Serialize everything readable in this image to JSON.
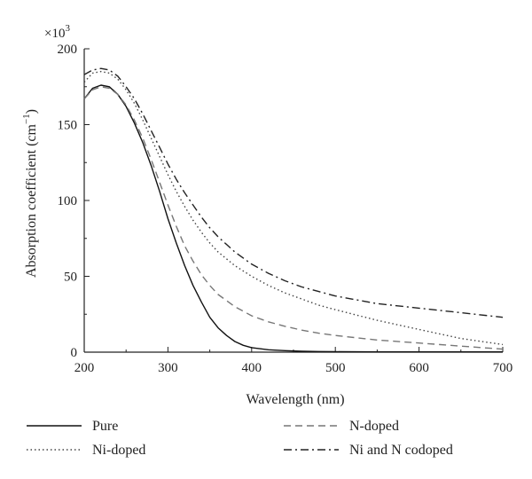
{
  "chart_data": {
    "type": "line",
    "xlabel": "Wavelength (nm)",
    "ylabel_main": "Absorption coefficient (cm",
    "ylabel_sup": "−1",
    "ylabel_tail": ")",
    "multiplier_prefix": "×10",
    "multiplier_exp": "3",
    "xlim": [
      200,
      700
    ],
    "ylim": [
      0,
      200
    ],
    "xticks": [
      200,
      300,
      400,
      500,
      600,
      700
    ],
    "yticks": [
      0,
      50,
      100,
      150,
      200
    ],
    "grid": false,
    "legend_placement": "bottom",
    "series": [
      {
        "name": "Pure",
        "color": "#111111",
        "dash": "solid",
        "x": [
          200,
          210,
          220,
          230,
          240,
          250,
          260,
          270,
          280,
          290,
          300,
          310,
          320,
          330,
          340,
          350,
          360,
          370,
          380,
          390,
          400,
          420,
          440,
          460,
          480,
          500,
          550,
          600,
          650,
          700
        ],
        "y": [
          167,
          174,
          176,
          175,
          170,
          162,
          151,
          138,
          123,
          106,
          88,
          72,
          57,
          44,
          33,
          23,
          16,
          11,
          7,
          4.5,
          3,
          1.6,
          1,
          0.6,
          0.4,
          0.3,
          0.2,
          0.2,
          0.2,
          0.2
        ]
      },
      {
        "name": "N-doped",
        "color": "#777777",
        "dash": "dashed",
        "x": [
          200,
          210,
          220,
          230,
          240,
          250,
          260,
          270,
          280,
          290,
          300,
          310,
          320,
          330,
          340,
          350,
          360,
          380,
          400,
          420,
          440,
          460,
          480,
          500,
          550,
          600,
          650,
          700
        ],
        "y": [
          167,
          173,
          175,
          174,
          170,
          163,
          153,
          141,
          127,
          112,
          97,
          83,
          70,
          60,
          51,
          44,
          38,
          30,
          24,
          20,
          17,
          14.5,
          12.5,
          11,
          8,
          6,
          4,
          2
        ]
      },
      {
        "name": "Ni-doped",
        "color": "#444444",
        "dash": "dotted",
        "x": [
          200,
          210,
          220,
          230,
          240,
          250,
          260,
          270,
          280,
          290,
          300,
          310,
          320,
          330,
          340,
          350,
          360,
          380,
          400,
          420,
          440,
          460,
          480,
          500,
          550,
          600,
          650,
          700
        ],
        "y": [
          178,
          184,
          185,
          184,
          180,
          173,
          164,
          153,
          141,
          129,
          117,
          106,
          96,
          87,
          79,
          72,
          66,
          57,
          50,
          44,
          39,
          35,
          31,
          28,
          21,
          15,
          9,
          5
        ]
      },
      {
        "name": "Ni and N codoped",
        "color": "#222222",
        "dash": "dashdot",
        "x": [
          200,
          210,
          220,
          230,
          240,
          250,
          260,
          270,
          280,
          290,
          300,
          310,
          320,
          330,
          340,
          350,
          360,
          380,
          400,
          420,
          440,
          460,
          480,
          500,
          550,
          600,
          650,
          700
        ],
        "y": [
          183,
          186,
          187,
          186,
          182,
          175,
          167,
          157,
          146,
          135,
          124,
          114,
          105,
          97,
          89,
          82,
          76,
          66,
          58,
          52,
          47,
          43,
          40,
          37,
          32,
          29,
          26,
          23
        ]
      }
    ],
    "legend_order": [
      "Pure",
      "N-doped",
      "Ni-doped",
      "Ni and N codoped"
    ]
  }
}
